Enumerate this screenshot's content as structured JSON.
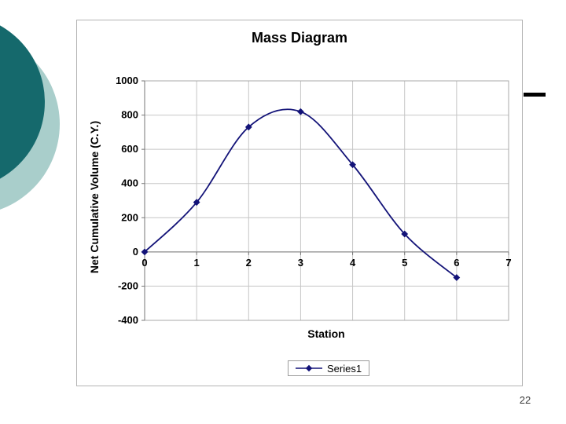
{
  "page": {
    "number": "22"
  },
  "decoration": {
    "dark_circle_color": "#15696c",
    "light_circle_color": "#a9cecb",
    "dash_color": "#000000"
  },
  "chart": {
    "title": "Mass Diagram",
    "y_axis_title": "Net Cumulative Volume (C.Y.)",
    "x_axis_title": "Station",
    "legend_label": "Series1"
  },
  "chart_data": {
    "type": "line",
    "title": "Mass Diagram",
    "xlabel": "Station",
    "ylabel": "Net Cumulative Volume (C.Y.)",
    "x": [
      0,
      1,
      2,
      3,
      4,
      5,
      6
    ],
    "series": [
      {
        "name": "Series1",
        "values": [
          0,
          290,
          730,
          820,
          510,
          105,
          -150
        ]
      }
    ],
    "xlim": [
      0,
      7
    ],
    "ylim": [
      -400,
      1000
    ],
    "x_ticks": [
      0,
      1,
      2,
      3,
      4,
      5,
      6,
      7
    ],
    "y_ticks": [
      1000,
      800,
      600,
      400,
      200,
      0,
      -200,
      -400
    ],
    "grid": true,
    "smooth": true,
    "marker": "diamond",
    "legend_position": "bottom-center",
    "line_color": "#131378",
    "grid_color": "#c6c6c6",
    "axis_color": "#777777",
    "plot_border_color": "#a8a8a8"
  }
}
